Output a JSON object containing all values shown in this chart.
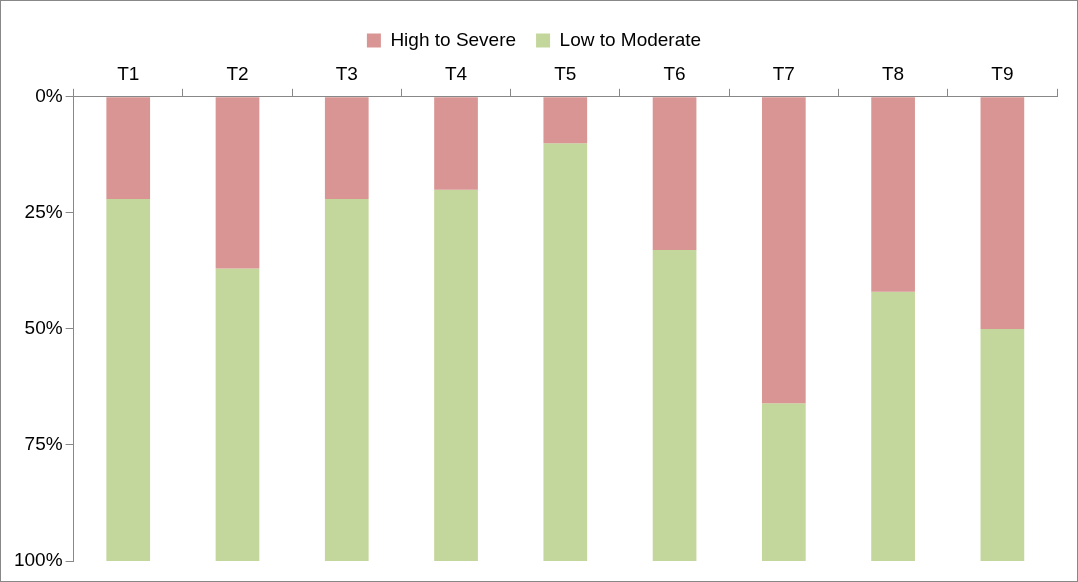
{
  "chart_data": {
    "type": "bar",
    "stacked": true,
    "categories": [
      "T1",
      "T2",
      "T3",
      "T4",
      "T5",
      "T6",
      "T7",
      "T8",
      "T9"
    ],
    "series": [
      {
        "name": "High to Severe",
        "color": "#d99594",
        "values": [
          22,
          37,
          22,
          20,
          10,
          33,
          66,
          42,
          50
        ]
      },
      {
        "name": "Low to Moderate",
        "color": "#c3d69b",
        "values": [
          78,
          63,
          78,
          80,
          90,
          67,
          34,
          58,
          50
        ]
      }
    ],
    "ylim": [
      100,
      0
    ],
    "yticks": [
      {
        "value": 0,
        "label": "0%"
      },
      {
        "value": 25,
        "label": "25%"
      },
      {
        "value": 50,
        "label": "50%"
      },
      {
        "value": 75,
        "label": "75%"
      },
      {
        "value": 100,
        "label": "100%"
      }
    ],
    "grid": false,
    "legend": "top"
  }
}
